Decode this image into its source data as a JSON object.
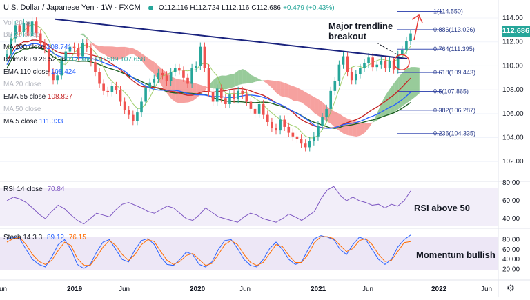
{
  "header": {
    "symbol": "U.S. Dollar / Japanese Yen",
    "interval": "1W",
    "exchange": "FXCM",
    "open": "O112.116",
    "high": "H112.724",
    "low": "L112.116",
    "close": "C112.686",
    "change": "+0.479 (+0.43%)"
  },
  "last_price": "112.686",
  "legend": [
    {
      "label": "Vol 20",
      "values": "",
      "muted": true,
      "eye": true
    },
    {
      "label": "BB 20 close",
      "values": "",
      "muted": true,
      "eye": false
    },
    {
      "label": "MA 200 close",
      "values": "108.741",
      "muted": false,
      "color": "#2962ff"
    },
    {
      "label": "Ichimoku 9 26 52 26",
      "values": "112.686  110.509  107.658",
      "muted": false,
      "color": "#26a69a"
    },
    {
      "label": "EMA 110 close",
      "values": "108.424",
      "muted": false,
      "color": "#2962ff"
    },
    {
      "label": "MA 20 close",
      "values": "",
      "muted": true
    },
    {
      "label": "EMA 55 close",
      "values": "108.827",
      "muted": false,
      "color": "#c62828"
    },
    {
      "label": "MA 50 close",
      "values": "",
      "muted": true
    },
    {
      "label": "MA 5 close",
      "values": "111.333",
      "muted": false,
      "color": "#2962ff"
    }
  ],
  "annotations": {
    "trendline": "Major trendline\nbreakout",
    "rsi": "RSI above 50",
    "stoch": "Momentum bullish"
  },
  "rsi_pane": {
    "title": "RSI 14 close",
    "value": "70.84"
  },
  "stoch_pane": {
    "title": "Stoch 14 3 3",
    "k": "89.12",
    "d": "76.15"
  },
  "colors": {
    "up": "#26a69a",
    "down": "#ef5350",
    "trend": "#1a237e",
    "fib": "#3f51b5",
    "rsi": "#7e57c2",
    "stochK": "#2962ff",
    "stochD": "#ff6d00"
  },
  "chart_data": {
    "type": "candlestick",
    "title": "U.S. Dollar / Japanese Yen 1W FXCM",
    "x_ticks": [
      "Jun",
      "2019",
      "Jun",
      "2020",
      "Jun",
      "2021",
      "Jun",
      "2022",
      "Jun"
    ],
    "y_ticks": [
      102,
      104,
      106,
      108,
      110,
      112,
      114
    ],
    "ylim": [
      100.4,
      115.5
    ],
    "fib_levels": [
      {
        "label": "1(114.550)",
        "value": 114.55
      },
      {
        "label": "0.886(113.026)",
        "value": 113.026
      },
      {
        "label": "0.764(111.395)",
        "value": 111.395
      },
      {
        "label": "0.618(109.443)",
        "value": 109.443
      },
      {
        "label": "0.5(107.865)",
        "value": 107.865
      },
      {
        "label": "0.382(106.287)",
        "value": 106.287
      },
      {
        "label": "0.236(104.335)",
        "value": 104.335
      }
    ],
    "price_path": [
      111.0,
      112.3,
      113.4,
      112.8,
      113.6,
      112.5,
      113.7,
      112.7,
      111.9,
      111.4,
      109.5,
      108.8,
      109.2,
      110.4,
      111.2,
      111.6,
      111.5,
      110.8,
      111.9,
      111.5,
      110.3,
      109.5,
      108.5,
      107.9,
      107.8,
      108.3,
      108.0,
      107.0,
      106.3,
      105.9,
      105.4,
      106.1,
      107.0,
      108.2,
      108.6,
      108.9,
      109.4,
      109.2,
      108.7,
      109.5,
      109.8,
      109.6,
      109.0,
      108.5,
      109.8,
      110.0,
      111.6,
      109.8,
      107.8,
      107.0,
      108.1,
      107.3,
      106.8,
      107.6,
      107.2,
      107.9,
      107.6,
      107.0,
      106.4,
      106.0,
      106.8,
      105.9,
      105.3,
      104.8,
      104.6,
      105.5,
      104.9,
      104.4,
      104.1,
      103.9,
      103.5,
      103.2,
      103.7,
      104.1,
      105.0,
      105.7,
      106.4,
      107.9,
      108.7,
      110.1,
      110.8,
      109.5,
      108.8,
      109.3,
      109.8,
      110.2,
      110.7,
      109.9,
      110.1,
      110.4,
      109.8,
      110.4,
      109.7,
      110.9,
      111.3,
      112.1,
      112.7
    ],
    "rsi": [
      60,
      64,
      62,
      58,
      52,
      45,
      40,
      48,
      55,
      51,
      44,
      38,
      34,
      40,
      46,
      44,
      42,
      50,
      56,
      58,
      55,
      52,
      48,
      46,
      50,
      54,
      52,
      46,
      40,
      38,
      44,
      52,
      47,
      42,
      40,
      38,
      36,
      42,
      46,
      44,
      40,
      38,
      36,
      40,
      45,
      42,
      38,
      43,
      48,
      62,
      72,
      76,
      66,
      60,
      64,
      60,
      58,
      55,
      56,
      52,
      56,
      54,
      60,
      70.84
    ],
    "stoch_k": [
      80,
      85,
      82,
      60,
      40,
      30,
      25,
      45,
      70,
      80,
      60,
      30,
      22,
      30,
      55,
      75,
      80,
      60,
      40,
      35,
      60,
      78,
      82,
      70,
      45,
      30,
      28,
      40,
      55,
      50,
      30,
      25,
      35,
      60,
      78,
      80,
      62,
      40,
      28,
      25,
      40,
      62,
      75,
      60,
      40,
      30,
      35,
      60,
      82,
      88,
      85,
      80,
      60,
      50,
      70,
      85,
      80,
      60,
      40,
      30,
      40,
      65,
      80,
      89.12
    ],
    "stoch_d": [
      75,
      82,
      84,
      70,
      50,
      36,
      30,
      38,
      58,
      75,
      68,
      42,
      28,
      28,
      45,
      65,
      78,
      68,
      50,
      38,
      50,
      70,
      80,
      76,
      56,
      38,
      30,
      36,
      48,
      52,
      40,
      28,
      32,
      50,
      70,
      78,
      70,
      50,
      34,
      28,
      34,
      52,
      70,
      66,
      48,
      34,
      34,
      50,
      74,
      86,
      86,
      82,
      68,
      56,
      62,
      78,
      82,
      70,
      50,
      36,
      38,
      56,
      74,
      76.15
    ],
    "rsi_ticks": [
      40,
      60,
      80
    ],
    "stoch_ticks": [
      20,
      40,
      60,
      80
    ]
  }
}
